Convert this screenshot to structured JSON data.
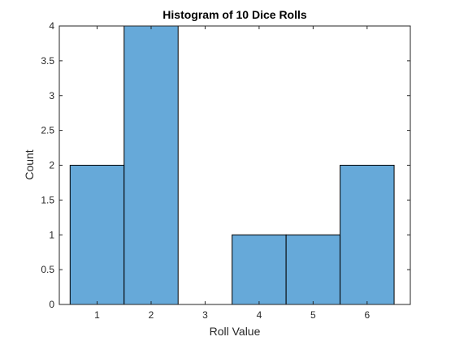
{
  "chart_data": {
    "type": "bar",
    "title": "Histogram of 10 Dice Rolls",
    "xlabel": "Roll Value",
    "ylabel": "Count",
    "categories": [
      1,
      2,
      3,
      4,
      5,
      6
    ],
    "values": [
      2,
      4,
      0,
      1,
      1,
      2
    ],
    "xlim": [
      0.3,
      6.8
    ],
    "ylim": [
      0,
      4
    ],
    "xticks": [
      "1",
      "2",
      "3",
      "4",
      "5",
      "6"
    ],
    "yticks": [
      "0",
      "0.5",
      "1",
      "1.5",
      "2",
      "2.5",
      "3",
      "3.5",
      "4"
    ],
    "grid": false,
    "colors": {
      "bar_fill": "#66a9d9",
      "bar_edge": "#000000",
      "axis": "#262626"
    }
  }
}
